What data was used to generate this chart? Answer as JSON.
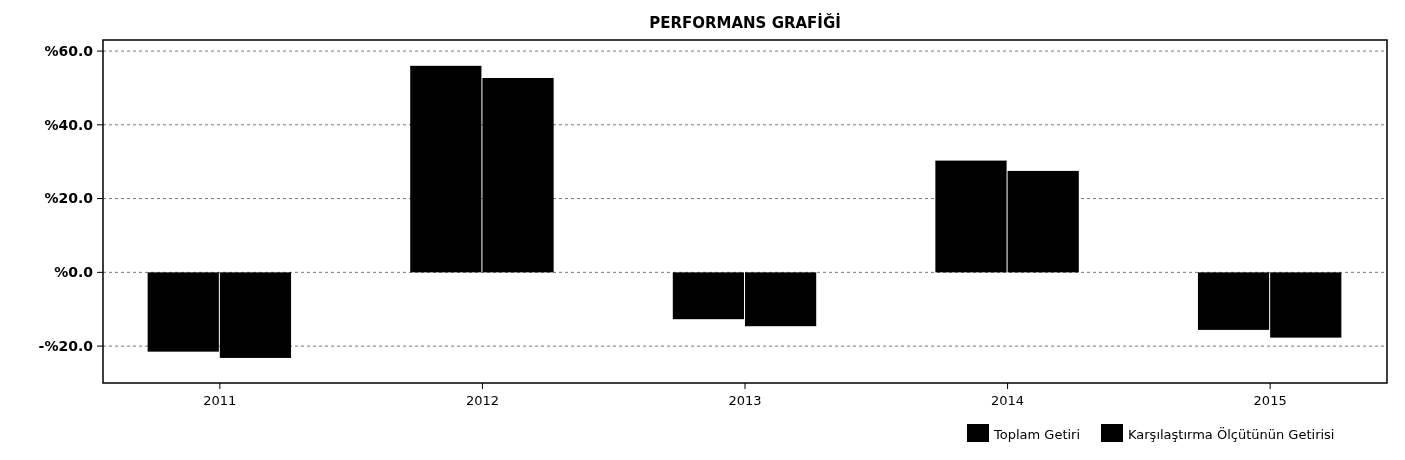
{
  "chart_data": {
    "type": "bar",
    "title": "PERFORMANS GRAFİĞİ",
    "categories": [
      "2011",
      "2012",
      "2013",
      "2014",
      "2015"
    ],
    "series": [
      {
        "name": "Toplam Getiri",
        "color": "#000000",
        "values": [
          -21.5,
          56,
          -12.7,
          30.3,
          -15.6
        ]
      },
      {
        "name": "Karşılaştırma Ölçütünün Getirisi",
        "color": "#000000",
        "values": [
          -23.2,
          52.7,
          -14.6,
          27.5,
          -17.7
        ]
      }
    ],
    "ylim": [
      -30,
      63
    ],
    "yticks": [
      {
        "value": -20,
        "label": "-%20.0"
      },
      {
        "value": 0,
        "label": "%0.0"
      },
      {
        "value": 20,
        "label": "%20.0"
      },
      {
        "value": 40,
        "label": "%40.0"
      },
      {
        "value": 60,
        "label": "%60.0"
      }
    ],
    "grid": "y",
    "legend": "bottom right"
  }
}
